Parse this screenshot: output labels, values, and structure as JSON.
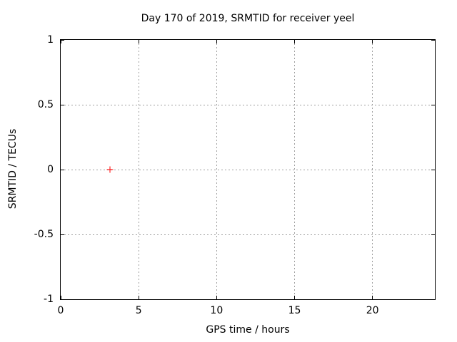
{
  "chart_data": {
    "type": "scatter",
    "title": "Day 170 of 2019, SRMTID for receiver yeel",
    "xlabel": "GPS time / hours",
    "ylabel": "SRMTID / TECUs",
    "xlim": [
      0,
      24
    ],
    "ylim": [
      -1,
      1
    ],
    "grid": true,
    "legend": "none",
    "xticks": [
      {
        "value": 0,
        "label": "0"
      },
      {
        "value": 5,
        "label": "5"
      },
      {
        "value": 10,
        "label": "10"
      },
      {
        "value": 15,
        "label": "15"
      },
      {
        "value": 20,
        "label": "20"
      }
    ],
    "yticks": [
      {
        "value": -1,
        "label": "-1"
      },
      {
        "value": -0.5,
        "label": "-0.5"
      },
      {
        "value": 0,
        "label": "0"
      },
      {
        "value": 0.5,
        "label": "0.5"
      },
      {
        "value": 1,
        "label": "1"
      }
    ],
    "series": [
      {
        "name": "SRMTID",
        "marker": "plus",
        "color": "#ff0000",
        "points": [
          {
            "x": 3.15,
            "y": 0
          }
        ]
      }
    ],
    "colors": {
      "background": "#ffffff",
      "axis": "#000000",
      "grid": "#a0a0a0",
      "text": "#000000"
    }
  }
}
